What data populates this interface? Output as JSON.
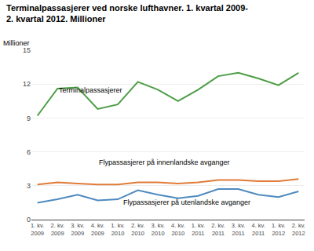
{
  "chart_data": {
    "type": "line",
    "title": "Terminalpassasjerer ved norske lufthavner. 1. kvartal 2009-\n2. kvartal 2012. Millioner",
    "y_label": "Millioner",
    "categories": [
      "1. kv.\n2009",
      "2. kv.\n2009",
      "3. kv.\n2009",
      "4. kv.\n2009",
      "1. kv.\n2010",
      "2. kv.\n2010",
      "3. kv.\n2010",
      "4. kv.\n2010",
      "1. kv.\n2011",
      "2. kv.\n2011",
      "3. kv.\n2011",
      "4. kv.\n2011",
      "1. kv.\n2012",
      "2. kv.\n2012"
    ],
    "series": [
      {
        "name": "Terminalpassasjerer",
        "color": "#4c9e45",
        "values": [
          9.2,
          11.6,
          11.7,
          9.8,
          10.2,
          12.2,
          11.5,
          10.5,
          11.5,
          12.7,
          13.0,
          12.5,
          11.9,
          13.0
        ]
      },
      {
        "name": "Flypassasjerer på innenlandske avganger",
        "color": "#e07b39",
        "values": [
          3.1,
          3.3,
          3.2,
          3.1,
          3.1,
          3.3,
          3.3,
          3.2,
          3.3,
          3.5,
          3.5,
          3.4,
          3.4,
          3.6
        ]
      },
      {
        "name": "Flypassasjerer på utenlandske avganger",
        "color": "#4f8abf",
        "values": [
          1.5,
          1.8,
          2.2,
          1.7,
          1.8,
          2.6,
          2.2,
          1.9,
          2.1,
          2.7,
          2.7,
          2.2,
          2.0,
          2.5
        ]
      }
    ],
    "ylim": [
      0,
      15
    ],
    "yticks": [
      0,
      3,
      6,
      9,
      12,
      15
    ],
    "grid": true
  }
}
